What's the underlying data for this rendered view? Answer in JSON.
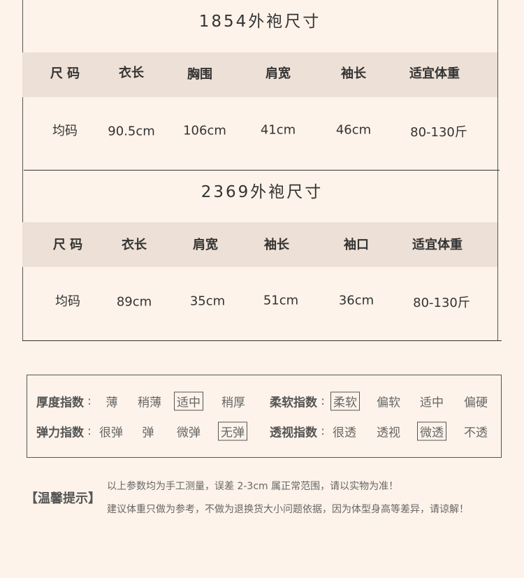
{
  "table1": {
    "title": "1854外袍尺寸",
    "headers": [
      "尺 码",
      "衣长",
      "胸围",
      "肩宽",
      "袖长",
      "适宜体重"
    ],
    "row": [
      "均码",
      "90.5cm",
      "106cm",
      "41cm",
      "46cm",
      "80-130斤"
    ]
  },
  "table2": {
    "title": "2369外袍尺寸",
    "headers": [
      "尺 码",
      "衣长",
      "肩宽",
      "袖长",
      "袖口",
      "适宜体重"
    ],
    "row": [
      "均码",
      "89cm",
      "35cm",
      "51cm",
      "36cm",
      "80-130斤"
    ]
  },
  "attributes": {
    "thickness": {
      "label": "厚度指数",
      "colon": ":",
      "options": [
        "薄",
        "稍薄",
        "适中",
        "稍厚"
      ],
      "selected": "适中"
    },
    "softness": {
      "label": "柔软指数",
      "colon": ":",
      "options": [
        "柔软",
        "偏软",
        "适中",
        "偏硬"
      ],
      "selected": "柔软"
    },
    "elasticity": {
      "label": "弹力指数",
      "colon": ":",
      "options": [
        "很弹",
        "弹",
        "微弹",
        "无弹"
      ],
      "selected": "无弹"
    },
    "transparency": {
      "label": "透视指数",
      "colon": ":",
      "options": [
        "很透",
        "透视",
        "微透",
        "不透"
      ],
      "selected": "微透"
    }
  },
  "tips": {
    "label": "【温馨提示】",
    "line1": "以上参数均为手工测量，误差 2-3cm 属正常范围，请以实物为准！",
    "line2": "建议体重只做为参考，不做为退换货大小问题依据，因为体型身高等差异，请谅解！"
  },
  "colors": {
    "background": "#fdf3ea",
    "header_band": "#ede0d6",
    "text": "#333333"
  }
}
